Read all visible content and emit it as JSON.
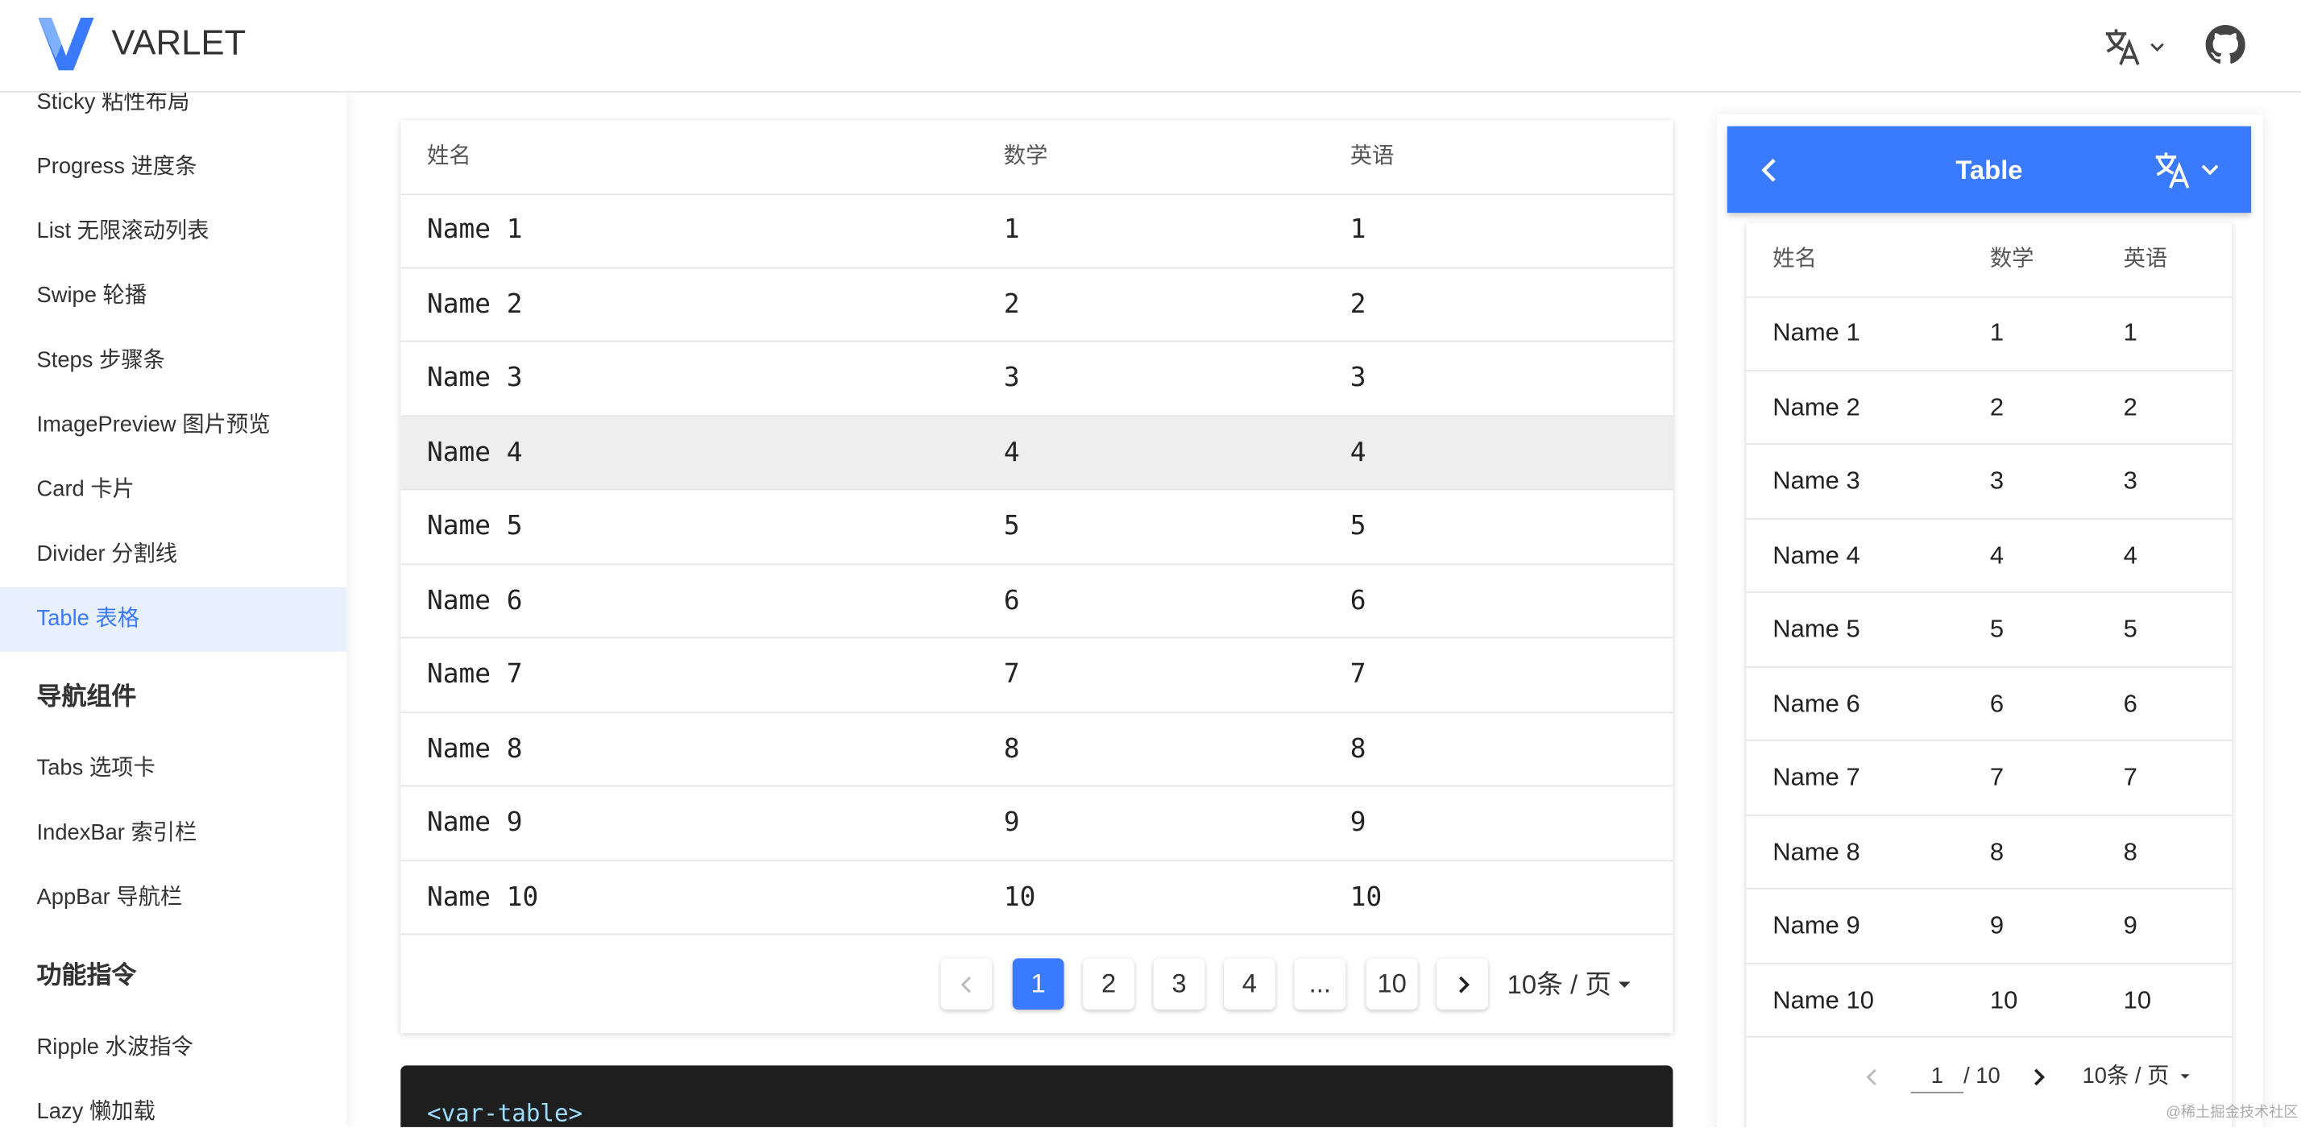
{
  "header": {
    "brand": "VARLET"
  },
  "sidebar": {
    "sections": [
      {
        "items": [
          {
            "label": "Sticky 粘性布局"
          },
          {
            "label": "Progress 进度条"
          },
          {
            "label": "List 无限滚动列表"
          },
          {
            "label": "Swipe 轮播"
          },
          {
            "label": "Steps 步骤条"
          },
          {
            "label": "ImagePreview 图片预览"
          },
          {
            "label": "Card 卡片"
          },
          {
            "label": "Divider 分割线"
          },
          {
            "label": "Table 表格",
            "active": true
          }
        ]
      },
      {
        "title": "导航组件",
        "items": [
          {
            "label": "Tabs 选项卡"
          },
          {
            "label": "IndexBar 索引栏"
          },
          {
            "label": "AppBar 导航栏"
          }
        ]
      },
      {
        "title": "功能指令",
        "items": [
          {
            "label": "Ripple 水波指令"
          },
          {
            "label": "Lazy 懒加载"
          }
        ]
      }
    ]
  },
  "table": {
    "columns": [
      "姓名",
      "数学",
      "英语"
    ],
    "rows": [
      [
        "Name 1",
        "1",
        "1"
      ],
      [
        "Name 2",
        "2",
        "2"
      ],
      [
        "Name 3",
        "3",
        "3"
      ],
      [
        "Name 4",
        "4",
        "4"
      ],
      [
        "Name 5",
        "5",
        "5"
      ],
      [
        "Name 6",
        "6",
        "6"
      ],
      [
        "Name 7",
        "7",
        "7"
      ],
      [
        "Name 8",
        "8",
        "8"
      ],
      [
        "Name 9",
        "9",
        "9"
      ],
      [
        "Name 10",
        "10",
        "10"
      ]
    ],
    "hovered_row": 3
  },
  "pagination": {
    "pages": [
      {
        "label": "1",
        "active": true
      },
      {
        "label": "2"
      },
      {
        "label": "3"
      },
      {
        "label": "4"
      },
      {
        "label": "..."
      },
      {
        "label": "10"
      }
    ],
    "size": "10条 / 页"
  },
  "code": "<var-table>",
  "preview": {
    "title": "Table",
    "table": {
      "columns": [
        "姓名",
        "数学",
        "英语"
      ],
      "rows": [
        [
          "Name 1",
          "1",
          "1"
        ],
        [
          "Name 2",
          "2",
          "2"
        ],
        [
          "Name 3",
          "3",
          "3"
        ],
        [
          "Name 4",
          "4",
          "4"
        ],
        [
          "Name 5",
          "5",
          "5"
        ],
        [
          "Name 6",
          "6",
          "6"
        ],
        [
          "Name 7",
          "7",
          "7"
        ],
        [
          "Name 8",
          "8",
          "8"
        ],
        [
          "Name 9",
          "9",
          "9"
        ],
        [
          "Name 10",
          "10",
          "10"
        ]
      ]
    },
    "pagination": {
      "current": "1",
      "total": "/ 10",
      "size": "10条 / 页"
    }
  },
  "watermark": "@稀土掘金技术社区"
}
